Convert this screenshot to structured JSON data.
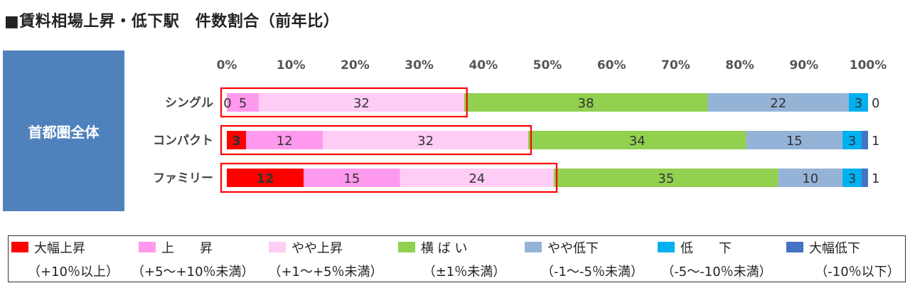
{
  "title": "■賃料相場上昇・低下駅　件数割合（前年比）",
  "region_label": "首都圏全体",
  "colors": {
    "highlight_box": "#ff0000"
  },
  "chart_data": {
    "type": "bar",
    "orientation": "horizontal",
    "stacked": true,
    "percent_stacked": true,
    "categories": [
      "シングル",
      "コンパクト",
      "ファミリー"
    ],
    "xlim": [
      0,
      100
    ],
    "x_ticks": [
      "0%",
      "10%",
      "20%",
      "30%",
      "40%",
      "50%",
      "60%",
      "70%",
      "80%",
      "90%",
      "100%"
    ],
    "legend_position": "bottom",
    "highlight": "first three series outlined in red per row",
    "series": [
      {
        "name": "大幅上昇",
        "range": "（+10％以上）",
        "color": "#ff0000",
        "label_color": "#ffffff",
        "values": [
          0,
          3,
          12
        ]
      },
      {
        "name": "上　　昇",
        "range": "（+5～+10％未満）",
        "color": "#ff99ee",
        "label_color": "#333333",
        "values": [
          5,
          12,
          15
        ]
      },
      {
        "name": "やや上昇",
        "range": "（+1～+5％未満）",
        "color": "#ffccf5",
        "label_color": "#333333",
        "values": [
          32,
          32,
          24
        ]
      },
      {
        "name": "横 ば い",
        "range": "（±1％未満）",
        "color": "#92d050",
        "label_color": "#333333",
        "values": [
          38,
          34,
          35
        ]
      },
      {
        "name": "やや低下",
        "range": "（-1～-5％未満）",
        "color": "#95b3d7",
        "label_color": "#333333",
        "values": [
          22,
          15,
          10
        ]
      },
      {
        "name": "低　　下",
        "range": "（-5～-10％未満）",
        "color": "#00b0f0",
        "label_color": "#333333",
        "values": [
          3,
          3,
          3
        ]
      },
      {
        "name": "大幅低下",
        "range": "（-10％以下）",
        "color": "#4472c4",
        "label_color": "#333333",
        "values": [
          0,
          1,
          1
        ]
      }
    ]
  }
}
